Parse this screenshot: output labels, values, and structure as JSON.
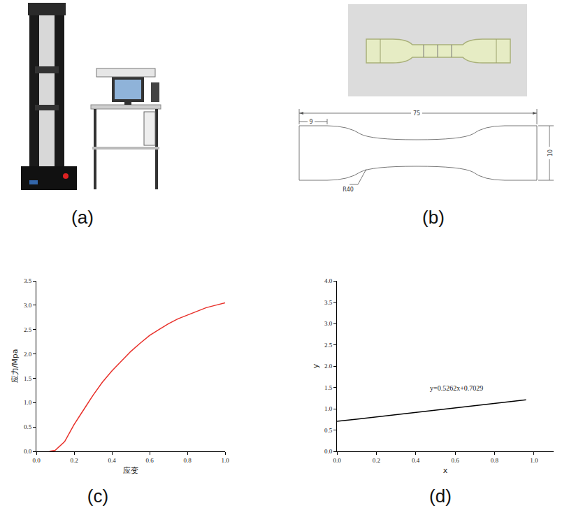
{
  "panels": [
    {
      "label": "(a)"
    },
    {
      "label": "(b)",
      "drawing": {
        "overall_length": "75",
        "grip_length": "9",
        "width": "10",
        "radius": "R40"
      }
    },
    {
      "label": "(c)"
    },
    {
      "label": "(d)"
    }
  ],
  "chart_data": [
    {
      "type": "line",
      "x_label": "应变",
      "y_label": "应力/Mpa",
      "x": [
        0.07,
        0.1,
        0.15,
        0.2,
        0.25,
        0.3,
        0.35,
        0.4,
        0.45,
        0.5,
        0.55,
        0.6,
        0.65,
        0.7,
        0.75,
        0.8,
        0.85,
        0.9,
        0.95,
        1.0
      ],
      "series": [
        {
          "color": "#e8302a",
          "values": [
            0,
            0.02,
            0.2,
            0.55,
            0.85,
            1.15,
            1.42,
            1.65,
            1.85,
            2.05,
            2.22,
            2.38,
            2.5,
            2.62,
            2.72,
            2.8,
            2.88,
            2.95,
            3.0,
            3.05
          ]
        }
      ],
      "xlim": [
        0,
        1.0
      ],
      "xticks": [
        {
          "value": 0,
          "label": "0.0"
        },
        0.2,
        0.4,
        0.6,
        0.8,
        {
          "value": 1.0,
          "label": "1.0"
        }
      ],
      "ylim": [
        0,
        3.5
      ],
      "yticks": [
        {
          "value": 0,
          "label": "0.0"
        },
        0.5,
        {
          "value": 1,
          "label": "1.0"
        },
        1.5,
        {
          "value": 2,
          "label": "2.0"
        },
        2.5,
        {
          "value": 3,
          "label": "3.0"
        },
        3.5
      ],
      "grid": false
    },
    {
      "type": "line",
      "x_label": "x",
      "y_label": "y",
      "annotations": [
        "y=0.5262x+0.7029"
      ],
      "x": [
        0,
        0.96
      ],
      "series": [
        {
          "color": "#000000",
          "values": [
            0.7029,
            1.208
          ]
        }
      ],
      "xlim": [
        0,
        1.1
      ],
      "xticks": [
        {
          "value": 0,
          "label": "0.0"
        },
        0.2,
        0.4,
        0.6,
        0.8,
        {
          "value": 1.0,
          "label": "1.0"
        }
      ],
      "ylim": [
        0,
        4.0
      ],
      "yticks": [
        {
          "value": 0,
          "label": "0.0"
        },
        0.5,
        {
          "value": 1,
          "label": "1.0"
        },
        1.5,
        {
          "value": 2,
          "label": "2.0"
        },
        2.5,
        {
          "value": 3,
          "label": "3.0"
        },
        3.5,
        {
          "value": 4,
          "label": "4.0"
        }
      ],
      "grid": false
    }
  ]
}
